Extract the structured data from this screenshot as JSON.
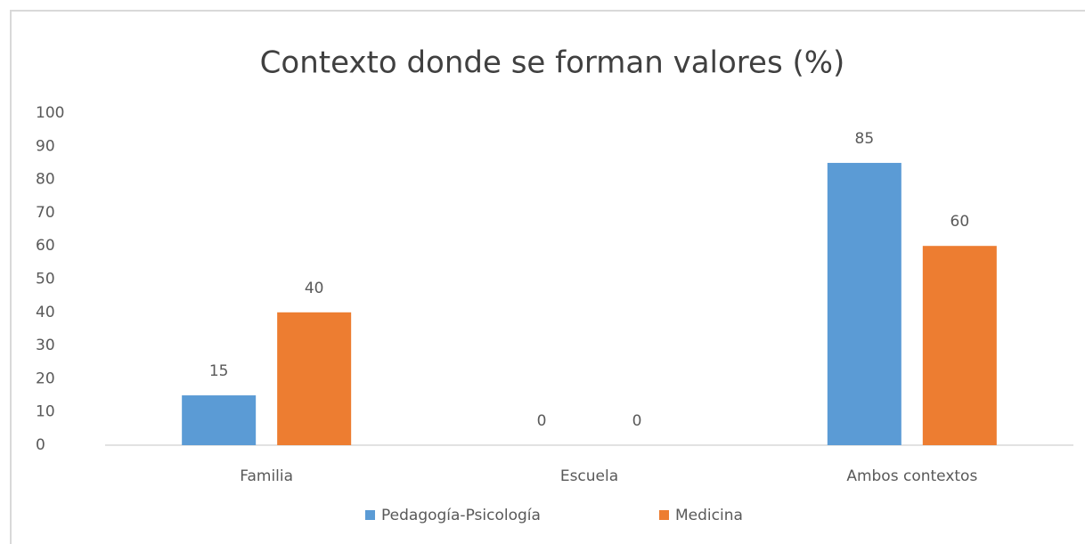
{
  "chart_data": {
    "type": "bar",
    "title": "Contexto donde se forman valores (%)",
    "categories": [
      "Familia",
      "Escuela",
      "Ambos contextos"
    ],
    "series": [
      {
        "name": "Pedagogía-Psicología",
        "color": "#5b9bd5",
        "values": [
          15,
          0,
          85
        ]
      },
      {
        "name": "Medicina",
        "color": "#ed7d31",
        "values": [
          40,
          0,
          60
        ]
      }
    ],
    "ylim": [
      0,
      100
    ],
    "yticks": [
      0,
      10,
      20,
      30,
      40,
      50,
      60,
      70,
      80,
      90,
      100
    ],
    "grid": false,
    "legend": "bottom"
  }
}
